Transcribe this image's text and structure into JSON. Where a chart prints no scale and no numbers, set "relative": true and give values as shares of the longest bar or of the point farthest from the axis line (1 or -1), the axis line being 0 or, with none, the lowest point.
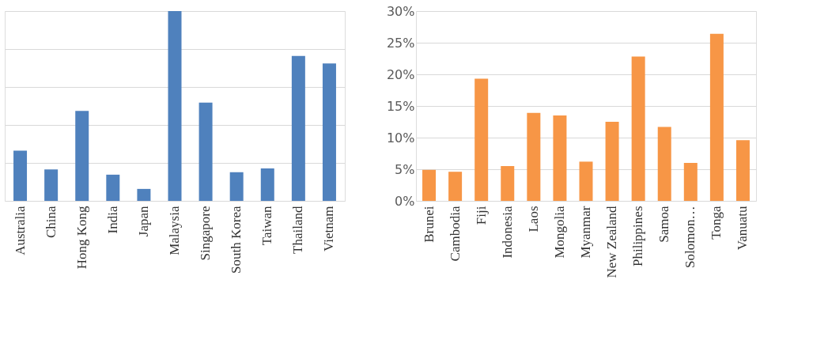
{
  "chart_data": [
    {
      "type": "bar",
      "relative": true,
      "grid": "y",
      "categories": [
        "Australia",
        "China",
        "Hong Kong",
        "India",
        "Japan",
        "Malaysia",
        "Singapore",
        "South Korea",
        "Taiwan",
        "Thailand",
        "Vietnam"
      ],
      "series": [
        {
          "color": "#4f81bd",
          "values": [
            0.265,
            0.166,
            0.474,
            0.138,
            0.063,
            1,
            0.518,
            0.151,
            0.171,
            0.764,
            0.724
          ]
        }
      ]
    },
    {
      "type": "bar",
      "grid": "y",
      "categories": [
        "Brunei",
        "Cambodia",
        "Fiji",
        "Indonesia",
        "Laos",
        "Mongolia",
        "Myanmar",
        "New Zealand",
        "Philippines",
        "Samoa",
        "Solomon…",
        "Tonga",
        "Vanuatu"
      ],
      "ylim": [
        0,
        30
      ],
      "yticks": [
        {
          "value": 0,
          "label": "0%"
        },
        {
          "value": 5,
          "label": "5%"
        },
        {
          "value": 10,
          "label": "10%"
        },
        {
          "value": 15,
          "label": "15%"
        },
        {
          "value": 20,
          "label": "20%"
        },
        {
          "value": 25,
          "label": "25%"
        },
        {
          "value": 30,
          "label": "30%"
        }
      ],
      "series": [
        {
          "color": "#f79646",
          "values": [
            4.9,
            4.6,
            19.3,
            5.5,
            13.9,
            13.5,
            6.2,
            12.5,
            22.8,
            11.7,
            6.0,
            26.4,
            9.6
          ]
        }
      ]
    }
  ]
}
